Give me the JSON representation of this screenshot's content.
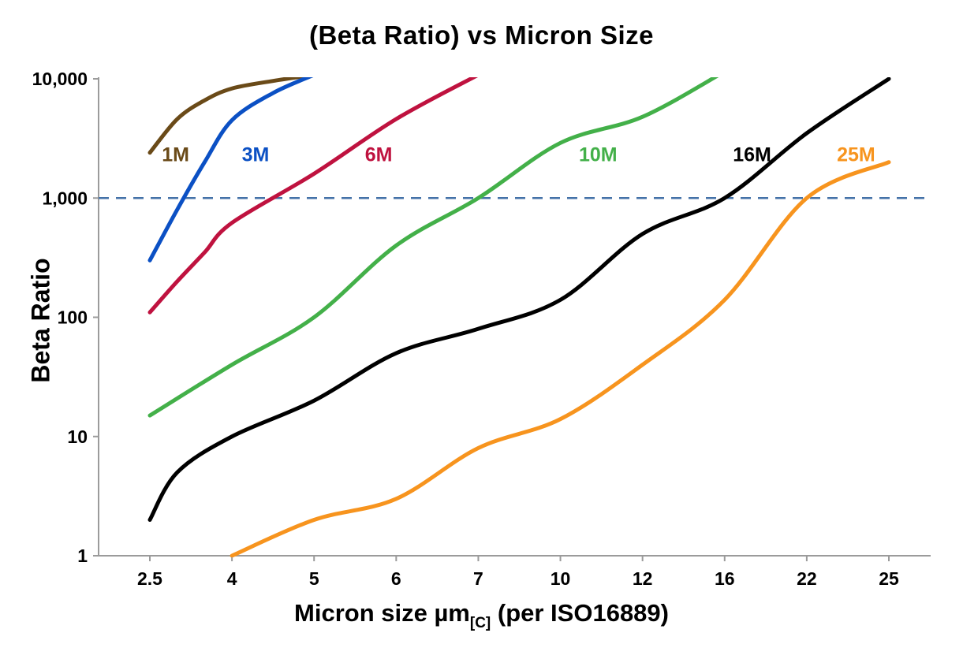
{
  "chart_data": {
    "type": "line",
    "title": "(Beta Ratio) vs Micron Size",
    "xlabel": "Micron size µm[C] (per ISO16889)",
    "xlabel_parts": {
      "main": "Micron size µm",
      "sub": "[C]",
      "rest": " (per ISO16889)"
    },
    "ylabel": "Beta Ratio",
    "x_scale": "categorical",
    "y_scale": "log",
    "x_ticks": [
      2.5,
      4,
      5,
      6,
      7,
      10,
      12,
      16,
      22,
      25
    ],
    "x_tick_labels": [
      "2.5",
      "4",
      "5",
      "6",
      "7",
      "10",
      "12",
      "16",
      "22",
      "25"
    ],
    "y_ticks": [
      1,
      10,
      100,
      1000,
      10000
    ],
    "y_tick_labels": [
      "1",
      "10",
      "100",
      "1,000",
      "10,000"
    ],
    "ylim": [
      1,
      10000
    ],
    "grid": "off",
    "axis_color": "#9b9b9b",
    "reference_line": {
      "y": 1000,
      "style": "dashed",
      "color": "#4472a8"
    },
    "legend_position": "inline-labels",
    "series": [
      {
        "name": "1M",
        "color": "#6a4a18",
        "label_at": [
          2.72,
          2300
        ],
        "points": [
          [
            2.5,
            2400
          ],
          [
            3,
            4600
          ],
          [
            3.5,
            6600
          ],
          [
            4,
            8300
          ],
          [
            4.5,
            9600
          ],
          [
            5,
            10800
          ]
        ]
      },
      {
        "name": "3M",
        "color": "#0b50c4",
        "label_at": [
          4.12,
          2300
        ],
        "points": [
          [
            2.5,
            300
          ],
          [
            3,
            800
          ],
          [
            3.5,
            2000
          ],
          [
            4,
            4500
          ],
          [
            4.5,
            7600
          ],
          [
            5,
            10800
          ]
        ]
      },
      {
        "name": "6M",
        "color": "#bf123f",
        "label_at": [
          5.62,
          2300
        ],
        "points": [
          [
            2.5,
            110
          ],
          [
            3,
            200
          ],
          [
            3.5,
            350
          ],
          [
            4,
            620
          ],
          [
            5,
            1600
          ],
          [
            6,
            4600
          ],
          [
            7,
            10800
          ]
        ]
      },
      {
        "name": "10M",
        "color": "#43b049",
        "label_at": [
          10.45,
          2300
        ],
        "points": [
          [
            2.5,
            15
          ],
          [
            4,
            40
          ],
          [
            5,
            100
          ],
          [
            6,
            400
          ],
          [
            7,
            1000
          ],
          [
            10,
            2900
          ],
          [
            12,
            4800
          ],
          [
            16,
            11500
          ]
        ]
      },
      {
        "name": "16M",
        "color": "#000000",
        "label_at": [
          16.6,
          2300
        ],
        "points": [
          [
            2.5,
            2
          ],
          [
            3,
            5
          ],
          [
            4,
            10
          ],
          [
            5,
            20
          ],
          [
            6,
            50
          ],
          [
            7,
            80
          ],
          [
            10,
            140
          ],
          [
            12,
            500
          ],
          [
            16,
            1000
          ],
          [
            22,
            3500
          ],
          [
            25,
            10000
          ]
        ]
      },
      {
        "name": "25M",
        "color": "#f7941e",
        "label_at": [
          23.1,
          2300
        ],
        "points": [
          [
            4,
            1
          ],
          [
            5,
            2
          ],
          [
            6,
            3
          ],
          [
            7,
            8
          ],
          [
            10,
            14
          ],
          [
            12,
            40
          ],
          [
            16,
            140
          ],
          [
            22,
            1000
          ],
          [
            25,
            2000
          ]
        ]
      }
    ]
  }
}
